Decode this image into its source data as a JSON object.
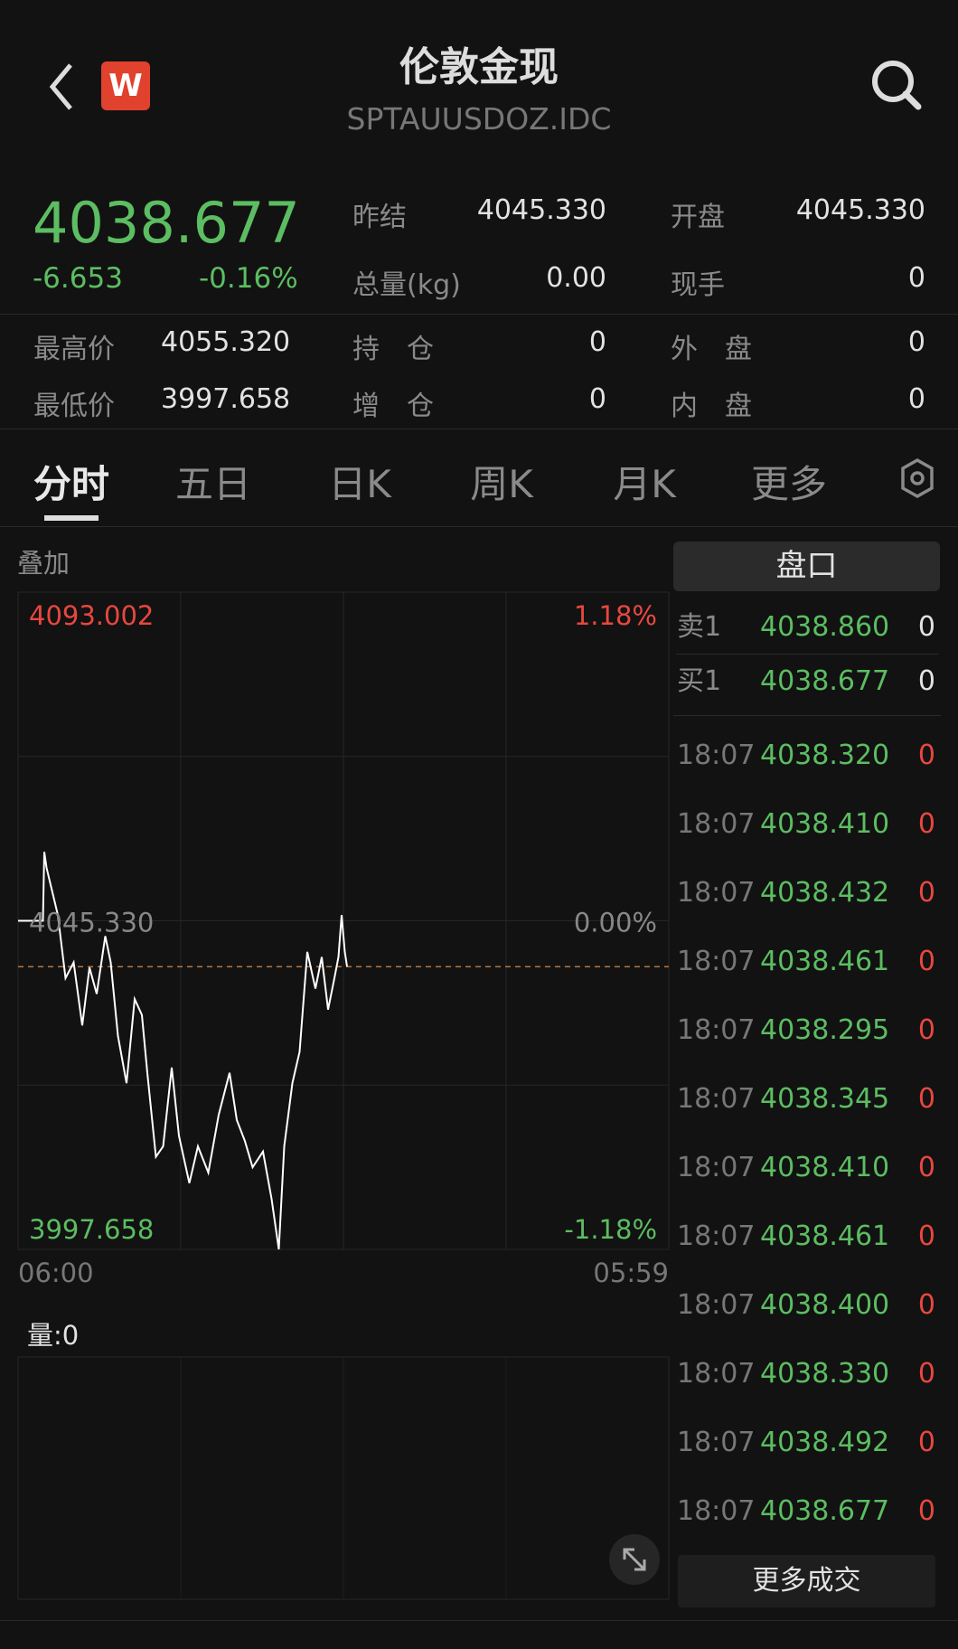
{
  "header": {
    "title": "伦敦金现",
    "code": "SPTAUUSDOZ.IDC",
    "back_icon": "chevron-left-icon",
    "logo_letter": "W",
    "search_icon": "search-icon"
  },
  "quote": {
    "price": "4038.677",
    "change": "-6.653",
    "change_pct": "-0.16%",
    "stats": [
      {
        "label": "昨结",
        "value": "4045.330"
      },
      {
        "label": "开盘",
        "value": "4045.330"
      },
      {
        "label": "总量(kg)",
        "value": "0.00"
      },
      {
        "label": "现手",
        "value": "0"
      },
      {
        "label": "最高价",
        "value": "4055.320"
      },
      {
        "label": "持　仓",
        "value": "0"
      },
      {
        "label": "外　盘",
        "value": "0"
      },
      {
        "label": "最低价",
        "value": "3997.658"
      },
      {
        "label": "增　仓",
        "value": "0"
      },
      {
        "label": "内　盘",
        "value": "0"
      }
    ]
  },
  "tabs": [
    {
      "label": "分时",
      "active": true
    },
    {
      "label": "五日"
    },
    {
      "label": "日K"
    },
    {
      "label": "周K"
    },
    {
      "label": "月K"
    },
    {
      "label": "更多"
    }
  ],
  "overlay_label": "叠加",
  "volume_label": "量:0",
  "orderbook": {
    "button": "盘口",
    "levels": [
      {
        "label": "卖1",
        "price": "4038.860",
        "qty": "0"
      },
      {
        "label": "买1",
        "price": "4038.677",
        "qty": "0"
      }
    ],
    "trades": [
      {
        "time": "18:07",
        "price": "4038.320",
        "qty": "0"
      },
      {
        "time": "18:07",
        "price": "4038.410",
        "qty": "0"
      },
      {
        "time": "18:07",
        "price": "4038.432",
        "qty": "0"
      },
      {
        "time": "18:07",
        "price": "4038.461",
        "qty": "0"
      },
      {
        "time": "18:07",
        "price": "4038.295",
        "qty": "0"
      },
      {
        "time": "18:07",
        "price": "4038.345",
        "qty": "0"
      },
      {
        "time": "18:07",
        "price": "4038.410",
        "qty": "0"
      },
      {
        "time": "18:07",
        "price": "4038.461",
        "qty": "0"
      },
      {
        "time": "18:07",
        "price": "4038.400",
        "qty": "0"
      },
      {
        "time": "18:07",
        "price": "4038.330",
        "qty": "0"
      },
      {
        "time": "18:07",
        "price": "4038.492",
        "qty": "0"
      },
      {
        "time": "18:07",
        "price": "4038.677",
        "qty": "0"
      }
    ],
    "more_button": "更多成交"
  },
  "colors": {
    "up": "#e8473f",
    "down": "#5cbd62",
    "line": "#ffffff",
    "current_price_line": "#d9884a"
  },
  "chart_data": {
    "type": "line",
    "ylim": [
      3997.658,
      4093.002
    ],
    "y_labels": {
      "top": "4093.002",
      "mid": "4045.330",
      "bottom": "3997.658"
    },
    "pct_labels": {
      "top": "1.18%",
      "mid": "0.00%",
      "bottom": "-1.18%"
    },
    "x_labels": {
      "start": "06:00",
      "end": "05:59"
    },
    "reference_price": 4045.33,
    "current_price": 4038.677,
    "grid": true,
    "points": [
      [
        "06:00",
        4045.33
      ],
      [
        "06:55",
        4045.33
      ],
      [
        "06:58",
        4055.32
      ],
      [
        "07:03",
        4053.03
      ],
      [
        "07:28",
        4046.17
      ],
      [
        "07:45",
        4037.02
      ],
      [
        "08:03",
        4039.3
      ],
      [
        "08:22",
        4030.15
      ],
      [
        "08:38",
        4038.54
      ],
      [
        "08:54",
        4034.73
      ],
      [
        "09:13",
        4043.12
      ],
      [
        "09:25",
        4039.3
      ],
      [
        "09:41",
        4028.63
      ],
      [
        "10:00",
        4021.76
      ],
      [
        "10:18",
        4033.97
      ],
      [
        "10:34",
        4031.68
      ],
      [
        "10:46",
        4023.29
      ],
      [
        "11:05",
        4011.09
      ],
      [
        "11:21",
        4012.61
      ],
      [
        "11:40",
        4024.05
      ],
      [
        "11:56",
        4014.13
      ],
      [
        "12:19",
        4007.27
      ],
      [
        "12:38",
        4012.61
      ],
      [
        "13:01",
        4008.79
      ],
      [
        "13:24",
        4017.18
      ],
      [
        "13:48",
        4023.29
      ],
      [
        "14:04",
        4016.42
      ],
      [
        "14:22",
        4013.37
      ],
      [
        "14:39",
        4009.56
      ],
      [
        "15:02",
        4011.85
      ],
      [
        "15:21",
        4004.98
      ],
      [
        "15:37",
        3997.66
      ],
      [
        "15:49",
        4012.61
      ],
      [
        "16:07",
        4021.76
      ],
      [
        "16:23",
        4026.34
      ],
      [
        "16:40",
        4040.83
      ],
      [
        "16:58",
        4035.49
      ],
      [
        "17:12",
        4040.07
      ],
      [
        "17:26",
        4032.44
      ],
      [
        "17:40",
        4037.02
      ],
      [
        "17:49",
        4040.07
      ],
      [
        "17:56",
        4046.17
      ],
      [
        "18:03",
        4040.83
      ],
      [
        "18:08",
        4038.68
      ]
    ]
  }
}
